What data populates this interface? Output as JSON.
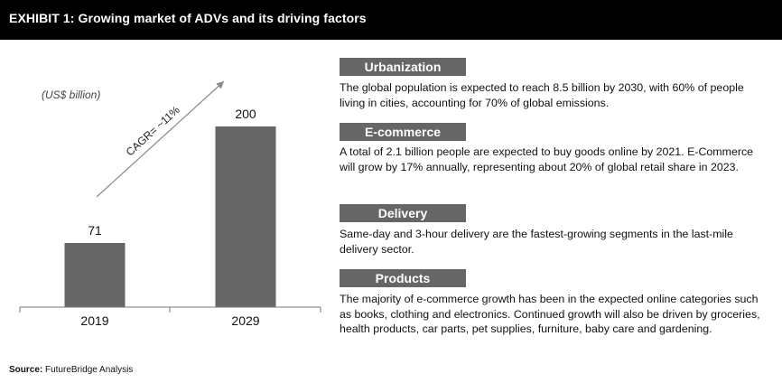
{
  "title": "EXHIBIT 1: Growing market of ADVs and its driving factors",
  "chart_data": {
    "type": "bar",
    "unit_label": "(US$ billion)",
    "categories": [
      "2019",
      "2029"
    ],
    "values": [
      71,
      200
    ],
    "data_labels": [
      "71",
      "200"
    ],
    "annotation": "CAGR= ~11%",
    "ylim": [
      0,
      220
    ],
    "bar_color": "#666666"
  },
  "sections": [
    {
      "heading": "Urbanization",
      "body": "The global population is expected to reach 8.5 billion by 2030, with 60% of people living in cities, accounting for 70% of global emissions."
    },
    {
      "heading": "E-commerce",
      "body": "A total of 2.1 billion people are expected to buy goods online by 2021. E-Commerce will grow by 17% annually, representing about 20% of global retail share in 2023."
    },
    {
      "heading": "Delivery",
      "body": "Same-day and 3-hour delivery are the fastest-growing segments in the last-mile delivery sector."
    },
    {
      "heading": "Products",
      "body": "The majority of e-commerce growth has been in the expected online categories such as books, clothing and electronics. Continued growth will also be driven by groceries, health products, car parts, pet supplies, furniture, baby care and gardening."
    }
  ],
  "source": {
    "label": "Source:",
    "text": "FutureBridge Analysis"
  }
}
